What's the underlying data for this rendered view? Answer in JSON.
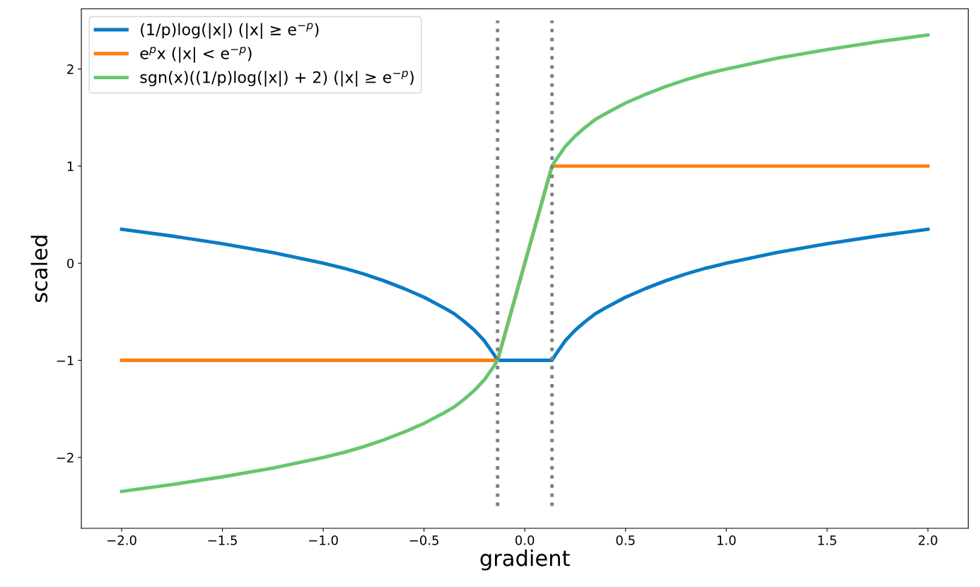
{
  "chart_data": {
    "type": "line",
    "xlabel": "gradient",
    "ylabel": "scaled",
    "xlim": [
      -2.2,
      2.2
    ],
    "ylim": [
      -2.73,
      2.62
    ],
    "xticks": [
      {
        "value": -2.0,
        "label": "−2.0"
      },
      {
        "value": -1.5,
        "label": "−1.5"
      },
      {
        "value": -1.0,
        "label": "−1.0"
      },
      {
        "value": -0.5,
        "label": "−0.5"
      },
      {
        "value": 0.0,
        "label": "0.0"
      },
      {
        "value": 0.5,
        "label": "0.5"
      },
      {
        "value": 1.0,
        "label": "1.0"
      },
      {
        "value": 1.5,
        "label": "1.5"
      },
      {
        "value": 2.0,
        "label": "2.0"
      }
    ],
    "yticks": [
      {
        "value": -2,
        "label": "−2"
      },
      {
        "value": -1,
        "label": "−1"
      },
      0,
      1,
      2
    ],
    "grid": false,
    "legend": "top left",
    "line_style": "solid",
    "marker": "none",
    "series": [
      {
        "name": "(1/p)log(|x|) (|x| ≥ e$^{−p}$)",
        "color": "#0a7bc4",
        "x": [
          -2,
          -1.75,
          -1.5,
          -1.25,
          -1,
          -0.9,
          -0.8,
          -0.7,
          -0.6,
          -0.5,
          -0.4,
          -0.35,
          -0.3,
          -0.25,
          -0.2,
          -0.17,
          -0.15,
          -0.135,
          0.135,
          0.15,
          0.17,
          0.2,
          0.25,
          0.3,
          0.35,
          0.4,
          0.5,
          0.6,
          0.7,
          0.8,
          0.9,
          1,
          1.25,
          1.5,
          1.75,
          2
        ],
        "values": [
          0.35,
          0.28,
          0.2,
          0.11,
          0,
          -0.05,
          -0.11,
          -0.18,
          -0.26,
          -0.35,
          -0.46,
          -0.52,
          -0.6,
          -0.69,
          -0.8,
          -0.89,
          -0.95,
          -1,
          -1,
          -0.95,
          -0.89,
          -0.8,
          -0.69,
          -0.6,
          -0.52,
          -0.46,
          -0.35,
          -0.26,
          -0.18,
          -0.11,
          -0.05,
          0,
          0.11,
          0.2,
          0.28,
          0.35
        ]
      },
      {
        "name": "e$^{p}$x (|x| < e$^{−p}$)",
        "color": "#ff7f0e",
        "x": [
          -2,
          -0.135,
          0.135,
          2
        ],
        "values": [
          -1,
          -1,
          1,
          1
        ]
      },
      {
        "name": "sgn(x)((1/p)log(|x|) + 2) (|x| ≥ e$^{−p}$)",
        "color": "#66c66e",
        "x": [
          -2,
          -1.75,
          -1.5,
          -1.25,
          -1,
          -0.9,
          -0.8,
          -0.7,
          -0.6,
          -0.5,
          -0.4,
          -0.35,
          -0.3,
          -0.25,
          -0.2,
          -0.17,
          -0.15,
          -0.135,
          0.135,
          0.15,
          0.17,
          0.2,
          0.25,
          0.3,
          0.35,
          0.4,
          0.5,
          0.6,
          0.7,
          0.8,
          0.9,
          1,
          1.25,
          1.5,
          1.75,
          2
        ],
        "values": [
          -2.35,
          -2.28,
          -2.2,
          -2.11,
          -2,
          -1.95,
          -1.89,
          -1.82,
          -1.74,
          -1.65,
          -1.54,
          -1.48,
          -1.4,
          -1.31,
          -1.2,
          -1.11,
          -1.05,
          -1,
          1,
          1.05,
          1.11,
          1.2,
          1.31,
          1.4,
          1.48,
          1.54,
          1.65,
          1.74,
          1.82,
          1.89,
          1.95,
          2,
          2.11,
          2.2,
          2.28,
          2.35
        ]
      },
      {
        "color": "#7f7f7f",
        "line_style": "dotted",
        "x": [
          -0.135,
          -0.135
        ],
        "values": [
          -2.5,
          2.5
        ]
      },
      {
        "color": "#7f7f7f",
        "line_style": "dotted",
        "x": [
          0.135,
          0.135
        ],
        "values": [
          -2.5,
          2.5
        ]
      }
    ]
  }
}
